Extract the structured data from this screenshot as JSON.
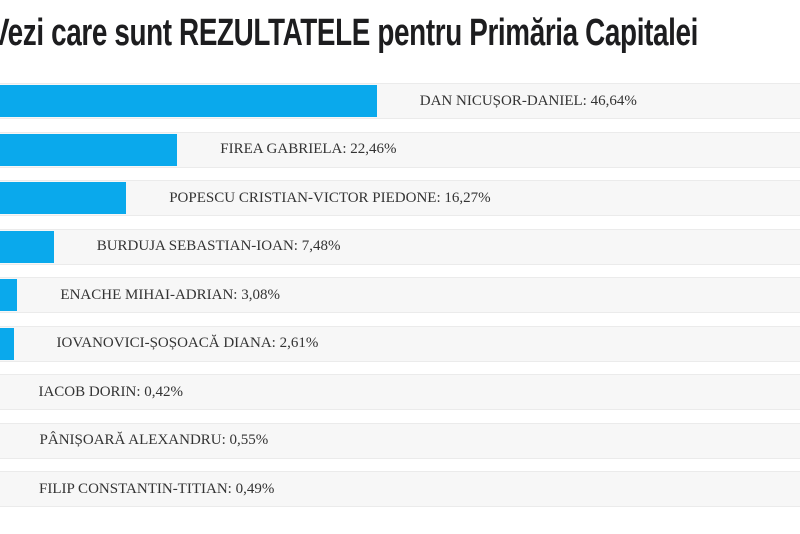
{
  "title": "Vezi care sunt REZULTATELE pentru Primăria Capitalei",
  "colors": {
    "bar": "#0aa9ec",
    "track_background": "#f7f7f7",
    "track_border": "#ebebeb",
    "title": "#1d1d1f",
    "label": "#333333",
    "page_background": "#ffffff"
  },
  "chart_data": {
    "type": "bar",
    "orientation": "horizontal",
    "title": "Vezi care sunt REZULTATELE pentru Primăria Capitalei",
    "categories": [
      "DAN NICUȘOR-DANIEL",
      "FIREA GABRIELA",
      "POPESCU CRISTIAN-VICTOR PIEDONE",
      "BURDUJA SEBASTIAN-IOAN",
      "ENACHE MIHAI-ADRIAN",
      "IOVANOVICI-ȘOȘOACĂ DIANA",
      "IACOB DORIN",
      "PÂNIȘOARĂ ALEXANDRU",
      "FILIP CONSTANTIN-TITIAN"
    ],
    "values": [
      46.64,
      22.46,
      16.27,
      7.48,
      3.08,
      2.61,
      0.42,
      0.55,
      0.49
    ],
    "value_labels": [
      "46,64%",
      "22,46%",
      "16,27%",
      "7,48%",
      "3,08%",
      "2,61%",
      "0,42%",
      "0,55%",
      "0,49%"
    ],
    "unit": "%",
    "xlim": [
      0,
      100
    ],
    "grid": false,
    "legend": false,
    "bar_color": "#0aa9ec",
    "track_color": "#f7f7f7"
  }
}
